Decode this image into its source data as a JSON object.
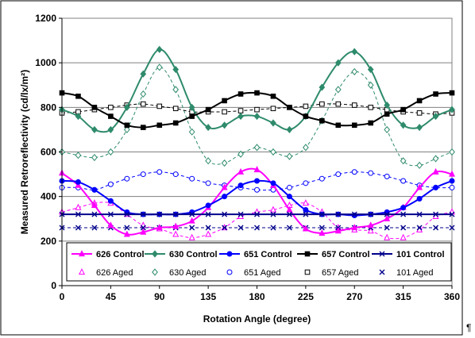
{
  "chart_data": {
    "type": "line",
    "title": "",
    "xlabel": "Rotation Angle (degree)",
    "ylabel": "Measured Retroreflectivity (cd/lx/m²)",
    "xlim": [
      0,
      360
    ],
    "ylim": [
      0,
      1200
    ],
    "xticks": [
      0,
      45,
      90,
      135,
      180,
      225,
      270,
      315,
      360
    ],
    "yticks": [
      0,
      200,
      400,
      600,
      800,
      1000,
      1200
    ],
    "grid": "horizontal",
    "legend_position": "bottom-inside",
    "x": [
      0,
      15,
      30,
      45,
      60,
      75,
      90,
      105,
      120,
      135,
      150,
      165,
      180,
      195,
      210,
      225,
      240,
      255,
      270,
      285,
      300,
      315,
      330,
      345,
      360
    ],
    "series": [
      {
        "name": "626 Control",
        "color": "#ff00ff",
        "dash": "solid",
        "marker": "triangle-filled",
        "values": [
          505,
          450,
          360,
          270,
          230,
          240,
          260,
          265,
          290,
          350,
          440,
          510,
          520,
          450,
          340,
          255,
          235,
          245,
          260,
          270,
          300,
          350,
          440,
          510,
          500
        ]
      },
      {
        "name": "630 Control",
        "color": "#2e8b6b",
        "dash": "solid",
        "marker": "diamond-filled",
        "values": [
          790,
          760,
          700,
          700,
          800,
          950,
          1060,
          970,
          800,
          710,
          720,
          760,
          760,
          730,
          700,
          760,
          890,
          1000,
          1050,
          970,
          810,
          720,
          710,
          760,
          790
        ]
      },
      {
        "name": "651 Control",
        "color": "#0000ff",
        "dash": "solid",
        "marker": "circle-filled",
        "values": [
          470,
          465,
          430,
          380,
          330,
          320,
          320,
          320,
          330,
          360,
          400,
          450,
          470,
          460,
          400,
          340,
          320,
          320,
          315,
          320,
          330,
          350,
          390,
          440,
          470
        ]
      },
      {
        "name": "657 Control",
        "color": "#000000",
        "dash": "solid",
        "marker": "square-filled",
        "values": [
          865,
          850,
          800,
          760,
          720,
          710,
          720,
          730,
          760,
          790,
          830,
          860,
          865,
          850,
          800,
          760,
          740,
          720,
          720,
          730,
          770,
          790,
          830,
          860,
          865
        ]
      },
      {
        "name": "101 Control",
        "color": "#00008b",
        "dash": "solid",
        "marker": "x",
        "values": [
          320,
          320,
          320,
          320,
          320,
          320,
          320,
          320,
          320,
          320,
          320,
          320,
          320,
          320,
          320,
          320,
          320,
          320,
          320,
          320,
          320,
          320,
          320,
          320,
          320
        ]
      },
      {
        "name": "626 Aged",
        "color": "#ff00ff",
        "dash": "dashed",
        "marker": "triangle-open",
        "values": [
          330,
          350,
          370,
          370,
          320,
          270,
          255,
          230,
          215,
          230,
          260,
          310,
          330,
          340,
          360,
          370,
          330,
          260,
          250,
          245,
          215,
          215,
          250,
          310,
          330
        ]
      },
      {
        "name": "630 Aged",
        "color": "#2e8b6b",
        "dash": "dashed",
        "marker": "diamond-open",
        "values": [
          600,
          585,
          575,
          600,
          700,
          860,
          980,
          880,
          690,
          560,
          550,
          590,
          620,
          600,
          580,
          620,
          740,
          880,
          960,
          900,
          700,
          560,
          540,
          570,
          600
        ]
      },
      {
        "name": "651 Aged",
        "color": "#0000ff",
        "dash": "dashed",
        "marker": "circle-open",
        "values": [
          440,
          440,
          430,
          455,
          480,
          500,
          510,
          500,
          480,
          460,
          450,
          440,
          430,
          430,
          440,
          460,
          480,
          500,
          510,
          505,
          490,
          470,
          450,
          440,
          440
        ]
      },
      {
        "name": "657 Aged",
        "color": "#000000",
        "dash": "dashed",
        "marker": "square-open",
        "values": [
          775,
          780,
          790,
          800,
          810,
          815,
          805,
          795,
          780,
          780,
          780,
          785,
          790,
          795,
          800,
          805,
          815,
          815,
          810,
          800,
          790,
          780,
          775,
          770,
          775
        ]
      },
      {
        "name": "101 Aged",
        "color": "#00008b",
        "dash": "dashed",
        "marker": "x",
        "values": [
          260,
          260,
          260,
          260,
          260,
          260,
          260,
          260,
          260,
          260,
          260,
          260,
          260,
          260,
          260,
          260,
          260,
          260,
          260,
          260,
          260,
          260,
          260,
          260,
          260
        ]
      }
    ]
  },
  "footer": {
    "pilcrow": "¶"
  }
}
